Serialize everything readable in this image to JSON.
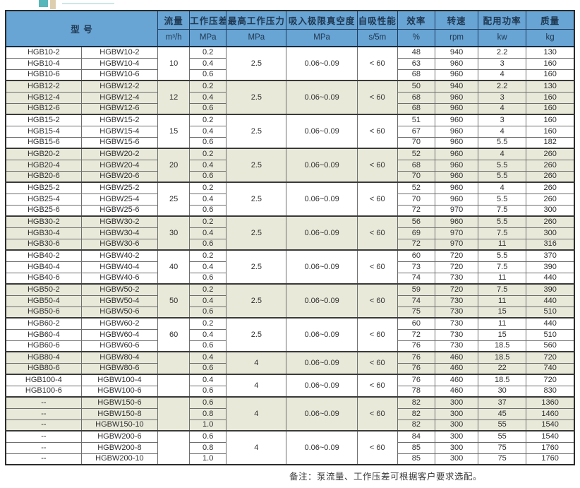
{
  "colors": {
    "header_bg": "#68a4d4",
    "header_text": "#1f3850",
    "shaded_row_bg": "#e9e9da",
    "deco_teal": "#55b7b9",
    "deco_tan": "#ddcfae"
  },
  "note": "备注：泵流量、工作压差可根据客户要求选配。",
  "table": {
    "header": {
      "model": "型  号",
      "columns": [
        {
          "label": "流量",
          "unit": "m³/h"
        },
        {
          "label": "工作压差",
          "unit": "MPa"
        },
        {
          "label": "最高工作压力",
          "unit": "MPa"
        },
        {
          "label": "吸入极限真空度",
          "unit": "MPa"
        },
        {
          "label": "自吸性能",
          "unit": "s/5m"
        },
        {
          "label": "效率",
          "unit": "%"
        },
        {
          "label": "转速",
          "unit": "rpm"
        },
        {
          "label": "配用功率",
          "unit": "kw"
        },
        {
          "label": "质量",
          "unit": "kg"
        }
      ]
    },
    "groups": [
      {
        "shaded": false,
        "flow": "10",
        "max_pressure": "2.5",
        "vacuum": "0.06~0.09",
        "self_priming": "< 60",
        "rows": [
          {
            "model_a": "HGB10-2",
            "model_b": "HGBW10-2",
            "diff_pressure": "0.2",
            "efficiency": "48",
            "rpm": "940",
            "power": "2.2",
            "mass": "130"
          },
          {
            "model_a": "HGB10-4",
            "model_b": "HGBW10-4",
            "diff_pressure": "0.4",
            "efficiency": "63",
            "rpm": "960",
            "power": "3",
            "mass": "160"
          },
          {
            "model_a": "HGB10-6",
            "model_b": "HGBW10-6",
            "diff_pressure": "0.6",
            "efficiency": "68",
            "rpm": "960",
            "power": "4",
            "mass": "160"
          }
        ]
      },
      {
        "shaded": true,
        "flow": "12",
        "max_pressure": "2.5",
        "vacuum": "0.06~0.09",
        "self_priming": "< 60",
        "rows": [
          {
            "model_a": "HGB12-2",
            "model_b": "HGBW12-2",
            "diff_pressure": "0.2",
            "efficiency": "50",
            "rpm": "940",
            "power": "2.2",
            "mass": "130"
          },
          {
            "model_a": "HGB12-4",
            "model_b": "HGBW12-4",
            "diff_pressure": "0.4",
            "efficiency": "68",
            "rpm": "960",
            "power": "3",
            "mass": "160"
          },
          {
            "model_a": "HGB12-6",
            "model_b": "HGBW12-6",
            "diff_pressure": "0.6",
            "efficiency": "68",
            "rpm": "960",
            "power": "4",
            "mass": "160"
          }
        ]
      },
      {
        "shaded": false,
        "flow": "15",
        "max_pressure": "2.5",
        "vacuum": "0.06~0.09",
        "self_priming": "< 60",
        "rows": [
          {
            "model_a": "HGB15-2",
            "model_b": "HGBW15-2",
            "diff_pressure": "0.2",
            "efficiency": "51",
            "rpm": "960",
            "power": "3",
            "mass": "160"
          },
          {
            "model_a": "HGB15-4",
            "model_b": "HGBW15-4",
            "diff_pressure": "0.4",
            "efficiency": "67",
            "rpm": "960",
            "power": "4",
            "mass": "160"
          },
          {
            "model_a": "HGB15-6",
            "model_b": "HGBW15-6",
            "diff_pressure": "0.6",
            "efficiency": "70",
            "rpm": "960",
            "power": "5.5",
            "mass": "182"
          }
        ]
      },
      {
        "shaded": true,
        "flow": "20",
        "max_pressure": "2.5",
        "vacuum": "0.06~0.09",
        "self_priming": "< 60",
        "rows": [
          {
            "model_a": "HGB20-2",
            "model_b": "HGBW20-2",
            "diff_pressure": "0.2",
            "efficiency": "52",
            "rpm": "960",
            "power": "4",
            "mass": "260"
          },
          {
            "model_a": "HGB20-4",
            "model_b": "HGBW20-4",
            "diff_pressure": "0.4",
            "efficiency": "68",
            "rpm": "960",
            "power": "5.5",
            "mass": "260"
          },
          {
            "model_a": "HGB20-6",
            "model_b": "HGBW20-6",
            "diff_pressure": "0.6",
            "efficiency": "70",
            "rpm": "960",
            "power": "5.5",
            "mass": "260"
          }
        ]
      },
      {
        "shaded": false,
        "flow": "25",
        "max_pressure": "2.5",
        "vacuum": "0.06~0.09",
        "self_priming": "< 60",
        "rows": [
          {
            "model_a": "HGB25-2",
            "model_b": "HGBW25-2",
            "diff_pressure": "0.2",
            "efficiency": "52",
            "rpm": "960",
            "power": "4",
            "mass": "260"
          },
          {
            "model_a": "HGB25-4",
            "model_b": "HGBW25-4",
            "diff_pressure": "0.4",
            "efficiency": "70",
            "rpm": "960",
            "power": "5.5",
            "mass": "260"
          },
          {
            "model_a": "HGB25-6",
            "model_b": "HGBW25-6",
            "diff_pressure": "0.6",
            "efficiency": "72",
            "rpm": "970",
            "power": "7.5",
            "mass": "300"
          }
        ]
      },
      {
        "shaded": true,
        "flow": "30",
        "max_pressure": "2.5",
        "vacuum": "0.06~0.09",
        "self_priming": "< 60",
        "rows": [
          {
            "model_a": "HGB30-2",
            "model_b": "HGBW30-2",
            "diff_pressure": "0.2",
            "efficiency": "56",
            "rpm": "960",
            "power": "5.5",
            "mass": "260"
          },
          {
            "model_a": "HGB30-4",
            "model_b": "HGBW30-4",
            "diff_pressure": "0.4",
            "efficiency": "69",
            "rpm": "970",
            "power": "7.5",
            "mass": "300"
          },
          {
            "model_a": "HGB30-6",
            "model_b": "HGBW30-6",
            "diff_pressure": "0.6",
            "efficiency": "72",
            "rpm": "970",
            "power": "11",
            "mass": "316"
          }
        ]
      },
      {
        "shaded": false,
        "flow": "40",
        "max_pressure": "2.5",
        "vacuum": "0.06~0.09",
        "self_priming": "< 60",
        "rows": [
          {
            "model_a": "HGB40-2",
            "model_b": "HGBW40-2",
            "diff_pressure": "0.2",
            "efficiency": "60",
            "rpm": "720",
            "power": "5.5",
            "mass": "370"
          },
          {
            "model_a": "HGB40-4",
            "model_b": "HGBW40-4",
            "diff_pressure": "0.4",
            "efficiency": "73",
            "rpm": "720",
            "power": "7.5",
            "mass": "390"
          },
          {
            "model_a": "HGB40-6",
            "model_b": "HGBW40-6",
            "diff_pressure": "0.6",
            "efficiency": "74",
            "rpm": "730",
            "power": "11",
            "mass": "440"
          }
        ]
      },
      {
        "shaded": true,
        "flow": "50",
        "max_pressure": "2.5",
        "vacuum": "0.06~0.09",
        "self_priming": "< 60",
        "rows": [
          {
            "model_a": "HGB50-2",
            "model_b": "HGBW50-2",
            "diff_pressure": "0.2",
            "efficiency": "59",
            "rpm": "720",
            "power": "7.5",
            "mass": "390"
          },
          {
            "model_a": "HGB50-4",
            "model_b": "HGBW50-4",
            "diff_pressure": "0.4",
            "efficiency": "74",
            "rpm": "730",
            "power": "11",
            "mass": "440"
          },
          {
            "model_a": "HGB50-6",
            "model_b": "HGBW50-6",
            "diff_pressure": "0.6",
            "efficiency": "75",
            "rpm": "730",
            "power": "15",
            "mass": "510"
          }
        ]
      },
      {
        "shaded": false,
        "flow": "60",
        "max_pressure": "2.5",
        "vacuum": "0.06~0.09",
        "self_priming": "< 60",
        "rows": [
          {
            "model_a": "HGB60-2",
            "model_b": "HGBW60-2",
            "diff_pressure": "0.2",
            "efficiency": "60",
            "rpm": "730",
            "power": "11",
            "mass": "440"
          },
          {
            "model_a": "HGB60-4",
            "model_b": "HGBW60-4",
            "diff_pressure": "0.4",
            "efficiency": "72",
            "rpm": "730",
            "power": "15",
            "mass": "510"
          },
          {
            "model_a": "HGB60-6",
            "model_b": "HGBW60-6",
            "diff_pressure": "0.6",
            "efficiency": "76",
            "rpm": "730",
            "power": "18.5",
            "mass": "560"
          }
        ]
      },
      {
        "shaded": true,
        "flow": "",
        "max_pressure": "4",
        "vacuum": "0.06~0.09",
        "self_priming": "< 60",
        "rows": [
          {
            "model_a": "HGB80-4",
            "model_b": "HGBW80-4",
            "diff_pressure": "0.4",
            "efficiency": "76",
            "rpm": "460",
            "power": "18.5",
            "mass": "720"
          },
          {
            "model_a": "HGB80-6",
            "model_b": "HGBW80-6",
            "diff_pressure": "0.6",
            "efficiency": "76",
            "rpm": "460",
            "power": "22",
            "mass": "740"
          }
        ]
      },
      {
        "shaded": false,
        "flow": "",
        "max_pressure": "4",
        "vacuum": "0.06~0.09",
        "self_priming": "< 60",
        "rows": [
          {
            "model_a": "HGB100-4",
            "model_b": "HGBW100-4",
            "diff_pressure": "0.4",
            "efficiency": "76",
            "rpm": "460",
            "power": "18.5",
            "mass": "720"
          },
          {
            "model_a": "HGB100-6",
            "model_b": "HGBW100-6",
            "diff_pressure": "0.6",
            "efficiency": "78",
            "rpm": "460",
            "power": "30",
            "mass": "830"
          }
        ]
      },
      {
        "shaded": true,
        "flow": "",
        "max_pressure": "4",
        "vacuum": "0.06~0.09",
        "self_priming": "< 60",
        "rows": [
          {
            "model_a": "--",
            "model_b": "HGBW150-6",
            "diff_pressure": "0.6",
            "efficiency": "82",
            "rpm": "300",
            "power": "37",
            "mass": "1360"
          },
          {
            "model_a": "--",
            "model_b": "HGBW150-8",
            "diff_pressure": "0.8",
            "efficiency": "82",
            "rpm": "300",
            "power": "45",
            "mass": "1460"
          },
          {
            "model_a": "--",
            "model_b": "HGBW150-10",
            "diff_pressure": "1.0",
            "efficiency": "82",
            "rpm": "300",
            "power": "55",
            "mass": "1540"
          }
        ]
      },
      {
        "shaded": false,
        "flow": "",
        "max_pressure": "4",
        "vacuum": "0.06~0.09",
        "self_priming": "< 60",
        "rows": [
          {
            "model_a": "--",
            "model_b": "HGBW200-6",
            "diff_pressure": "0.6",
            "efficiency": "84",
            "rpm": "300",
            "power": "55",
            "mass": "1540"
          },
          {
            "model_a": "--",
            "model_b": "HGBW200-8",
            "diff_pressure": "0.8",
            "efficiency": "85",
            "rpm": "300",
            "power": "75",
            "mass": "1760"
          },
          {
            "model_a": "--",
            "model_b": "HGBW200-10",
            "diff_pressure": "1.0",
            "efficiency": "85",
            "rpm": "300",
            "power": "75",
            "mass": "1760"
          }
        ]
      }
    ]
  }
}
